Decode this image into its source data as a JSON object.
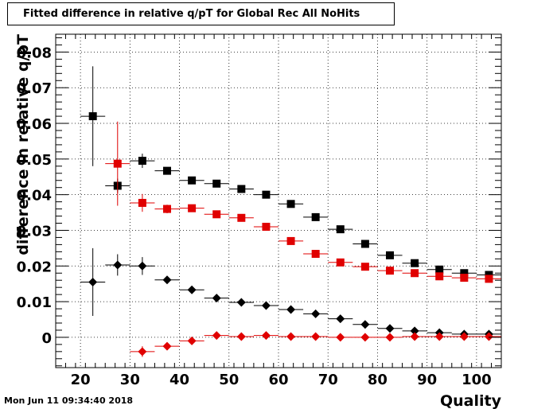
{
  "title": "Fitted difference in relative q/pT  for Global Rec All NoHits",
  "timestamp": "Mon Jun 11 09:34:40 2018",
  "chart_data": {
    "type": "scatter",
    "title": "Fitted difference in relative q/pT  for Global Rec All NoHits",
    "xlabel": "Quality",
    "ylabel": "difference in relative q/pT",
    "xlim": [
      15,
      105
    ],
    "ylim": [
      -0.0085,
      0.085
    ],
    "grid": true,
    "x_ticks": [
      20,
      30,
      40,
      50,
      60,
      70,
      80,
      90,
      100
    ],
    "y_ticks": [
      0,
      0.01,
      0.02,
      0.03,
      0.04,
      0.05,
      0.06,
      0.07,
      0.08
    ],
    "y_tick_labels": [
      "0",
      "0.01",
      "0.02",
      "0.03",
      "0.04",
      "0.05",
      "0.06",
      "0.07",
      "0.08"
    ],
    "series": [
      {
        "marker": "square",
        "color": "#000000",
        "x": [
          22.5,
          27.5,
          32.5,
          37.5,
          42.5,
          47.5,
          52.5,
          57.5,
          62.5,
          67.5,
          72.5,
          77.5,
          82.5,
          87.5,
          92.5,
          97.5,
          102.5
        ],
        "y": [
          0.062,
          0.0425,
          0.0495,
          0.0467,
          0.044,
          0.0431,
          0.0416,
          0.04,
          0.0374,
          0.0337,
          0.0303,
          0.0262,
          0.023,
          0.0208,
          0.019,
          0.018,
          0.0175
        ],
        "yerr": [
          0.014,
          0.002,
          0.002,
          0.001,
          0.0008,
          0.0006,
          0.0005,
          0.0005,
          0.0005,
          0.0005,
          0.0005,
          0.0005,
          0.0005,
          0.0005,
          0.0005,
          0.0005,
          0.0005
        ]
      },
      {
        "marker": "square",
        "color": "#e00000",
        "x": [
          27.5,
          32.5,
          37.5,
          42.5,
          47.5,
          52.5,
          57.5,
          62.5,
          67.5,
          72.5,
          77.5,
          82.5,
          87.5,
          92.5,
          97.5,
          102.5
        ],
        "y": [
          0.0487,
          0.0377,
          0.036,
          0.0362,
          0.0345,
          0.0335,
          0.031,
          0.027,
          0.0234,
          0.021,
          0.0198,
          0.0187,
          0.018,
          0.0171,
          0.0167,
          0.0164
        ],
        "yerr": [
          0.0118,
          0.0025,
          0.0012,
          0.0008,
          0.0006,
          0.0005,
          0.0005,
          0.0005,
          0.0005,
          0.0005,
          0.0005,
          0.0005,
          0.0005,
          0.0005,
          0.0005,
          0.0005
        ]
      },
      {
        "marker": "diamond",
        "color": "#000000",
        "x": [
          22.5,
          27.5,
          32.5,
          37.5,
          42.5,
          47.5,
          52.5,
          57.5,
          62.5,
          67.5,
          72.5,
          77.5,
          82.5,
          87.5,
          92.5,
          97.5,
          102.5
        ],
        "y": [
          0.0155,
          0.0203,
          0.02,
          0.0161,
          0.0133,
          0.011,
          0.0098,
          0.0089,
          0.0078,
          0.0066,
          0.0052,
          0.0036,
          0.0025,
          0.0018,
          0.0013,
          0.0009,
          0.0009
        ],
        "yerr": [
          0.0095,
          0.003,
          0.0025,
          0.001,
          0.0007,
          0.0005,
          0.0004,
          0.0004,
          0.0004,
          0.0004,
          0.0004,
          0.0004,
          0.0004,
          0.0004,
          0.0004,
          0.0004,
          0.0004
        ]
      },
      {
        "marker": "diamond",
        "color": "#e00000",
        "x": [
          32.5,
          37.5,
          42.5,
          47.5,
          52.5,
          57.5,
          62.5,
          67.5,
          72.5,
          77.5,
          82.5,
          87.5,
          92.5,
          97.5,
          102.5
        ],
        "y": [
          -0.004,
          -0.0025,
          -0.001,
          0.0005,
          0.0002,
          0.0005,
          0.0002,
          0.0002,
          0.0,
          0.0,
          0.0,
          0.0002,
          0.0002,
          0.0002,
          0.0002
        ],
        "yerr": [
          0.0015,
          0.0008,
          0.0006,
          0.0004,
          0.0003,
          0.0003,
          0.0003,
          0.0003,
          0.0003,
          0.0003,
          0.0003,
          0.0003,
          0.0003,
          0.0003,
          0.0003
        ]
      }
    ]
  }
}
